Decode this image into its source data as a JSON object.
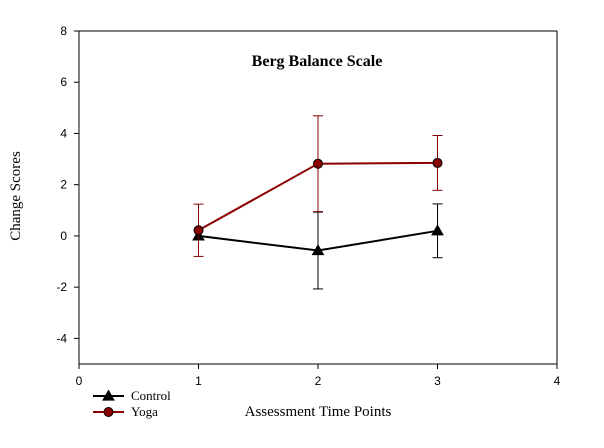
{
  "chart_data": {
    "type": "line",
    "title": "Berg Balance Scale",
    "xlabel": "Assessment Time Points",
    "ylabel": "Change Scores",
    "xlim": [
      0,
      4
    ],
    "ylim": [
      -5,
      8
    ],
    "x_ticks": [
      0,
      1,
      2,
      3,
      4
    ],
    "y_ticks": [
      -4,
      -2,
      0,
      2,
      4,
      6,
      8
    ],
    "grid": false,
    "legend_position": "bottom-left",
    "series": [
      {
        "name": "Control",
        "marker": "triangle",
        "color": "#000000",
        "x": [
          1,
          2,
          3
        ],
        "y": [
          0.0,
          -0.57,
          0.2
        ],
        "error": [
          0.0,
          1.5,
          1.05
        ]
      },
      {
        "name": "Yoga",
        "marker": "circle",
        "color": "#8b0000",
        "x": [
          1,
          2,
          3
        ],
        "y": [
          0.22,
          2.82,
          2.85
        ],
        "error": [
          1.02,
          1.87,
          1.07
        ]
      }
    ]
  }
}
